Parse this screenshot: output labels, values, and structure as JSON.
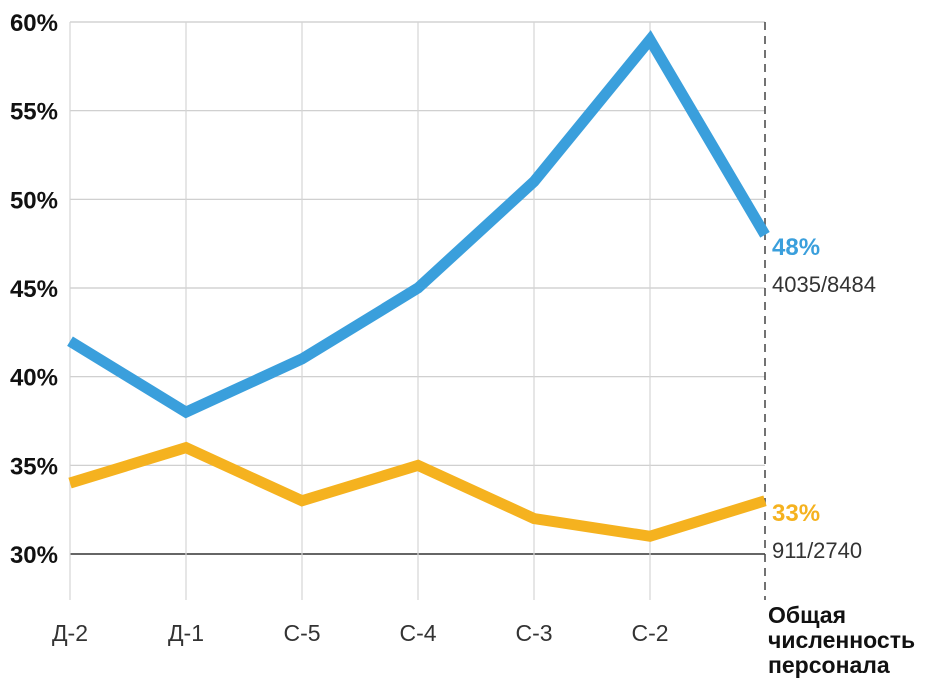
{
  "chart_data": {
    "type": "line",
    "categories": [
      "Д-2",
      "Д-1",
      "С-5",
      "С-4",
      "С-3",
      "С-2",
      "Общая численность персонала"
    ],
    "last_category_lines": [
      "Общая",
      "численность",
      "персонала"
    ],
    "y_ticks": [
      "30%",
      "35%",
      "40%",
      "45%",
      "50%",
      "55%",
      "60%"
    ],
    "ylim": [
      30,
      60
    ],
    "y_unit": "%",
    "grid": true,
    "series": [
      {
        "color": "#3a9fdc",
        "values": [
          42,
          38,
          41,
          45,
          51,
          59,
          48
        ],
        "end_label": "48%",
        "end_count": "4035/8484"
      },
      {
        "color": "#f5b21f",
        "values": [
          34,
          36,
          33,
          35,
          32,
          31,
          33
        ],
        "end_label": "33%",
        "end_count": "911/2740"
      }
    ]
  }
}
